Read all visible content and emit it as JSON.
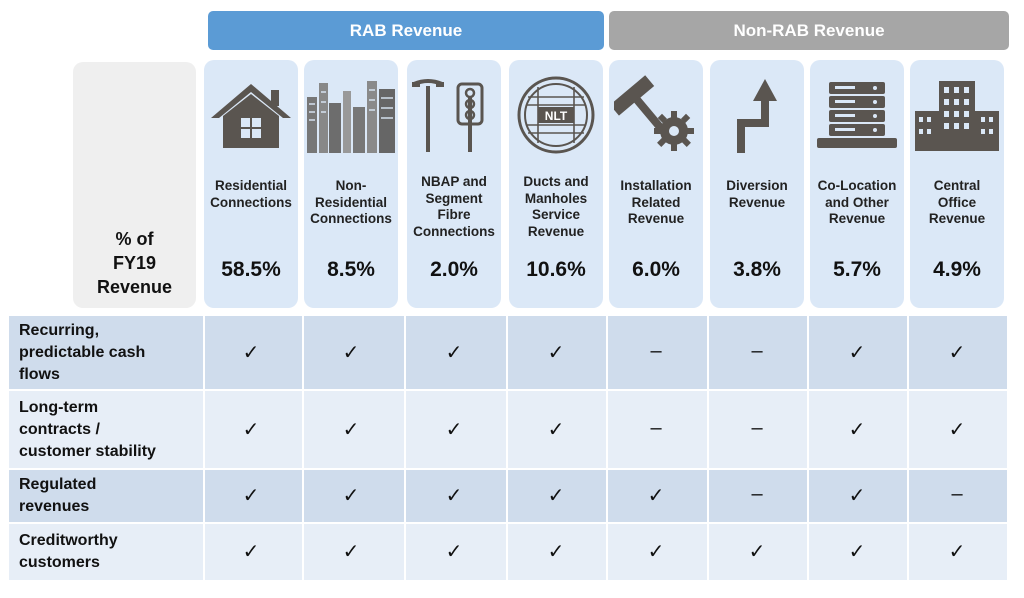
{
  "groups": {
    "rab": "RAB Revenue",
    "non_rab": "Non-RAB Revenue"
  },
  "row_header": {
    "line1": "% of",
    "line2": "FY19",
    "line3": "Revenue"
  },
  "columns": [
    {
      "icon": "house-icon",
      "name_lines": [
        "Residential",
        "Connections"
      ],
      "pct": "58.5%"
    },
    {
      "icon": "city-buildings-icon",
      "name_lines": [
        "Non-",
        "Residential",
        "Connections"
      ],
      "pct": "8.5%"
    },
    {
      "icon": "streetlight-traffic-icon",
      "name_lines": [
        "NBAP and",
        "Segment",
        "Fibre",
        "Connections"
      ],
      "pct": "2.0%"
    },
    {
      "icon": "manhole-cover-icon",
      "icon_text": "NLT",
      "name_lines": [
        "Ducts and",
        "Manholes",
        "Service",
        "Revenue"
      ],
      "pct": "10.6%"
    },
    {
      "icon": "hammer-gear-icon",
      "name_lines": [
        "Installation",
        "Related",
        "Revenue"
      ],
      "pct": "6.0%"
    },
    {
      "icon": "diversion-arrow-icon",
      "name_lines": [
        "Diversion",
        "Revenue"
      ],
      "pct": "3.8%"
    },
    {
      "icon": "server-rack-icon",
      "name_lines": [
        "Co-Location",
        "and Other",
        "Revenue"
      ],
      "pct": "5.7%"
    },
    {
      "icon": "office-building-icon",
      "name_lines": [
        "Central",
        "Office",
        "Revenue"
      ],
      "pct": "4.9%"
    }
  ],
  "rows": [
    {
      "label_lines": [
        "Recurring,",
        "predictable cash",
        "flows"
      ],
      "cells": [
        "✓",
        "✓",
        "✓",
        "✓",
        "–",
        "–",
        "✓",
        "✓"
      ]
    },
    {
      "label_lines": [
        "Long-term",
        "contracts /",
        "customer stability"
      ],
      "cells": [
        "✓",
        "✓",
        "✓",
        "✓",
        "–",
        "–",
        "✓",
        "✓"
      ]
    },
    {
      "label_lines": [
        "Regulated",
        "revenues"
      ],
      "cells": [
        "✓",
        "✓",
        "✓",
        "✓",
        "✓",
        "–",
        "✓",
        "–"
      ]
    },
    {
      "label_lines": [
        "Creditworthy",
        "customers"
      ],
      "cells": [
        "✓",
        "✓",
        "✓",
        "✓",
        "✓",
        "✓",
        "✓",
        "✓"
      ]
    }
  ],
  "colors": {
    "rab": "#5b9bd5",
    "non_rab": "#a6a6a6",
    "card": "#dbe8f7",
    "icon": "#5a5550"
  }
}
